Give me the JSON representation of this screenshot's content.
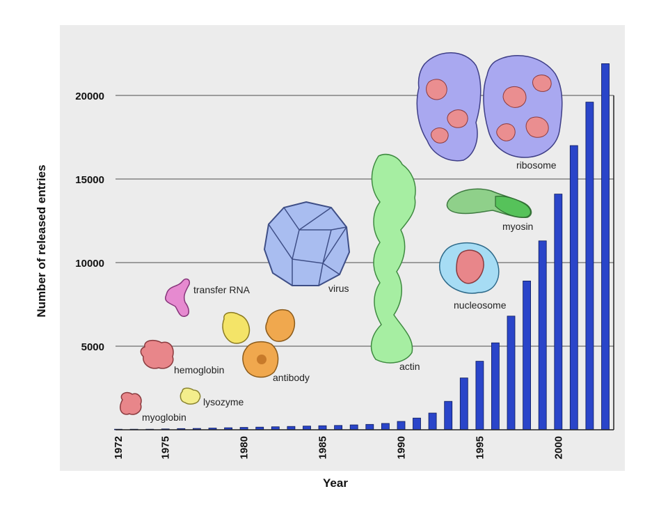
{
  "chart_data": {
    "type": "bar",
    "title": "",
    "xlabel": "Year",
    "ylabel": "Number of released entries",
    "x": [
      1972,
      1973,
      1974,
      1975,
      1976,
      1977,
      1978,
      1979,
      1980,
      1981,
      1982,
      1983,
      1984,
      1985,
      1986,
      1987,
      1988,
      1989,
      1990,
      1991,
      1992,
      1993,
      1994,
      1995,
      1996,
      1997,
      1998,
      1999,
      2000,
      2001,
      2002,
      2003
    ],
    "values": [
      10,
      20,
      30,
      50,
      70,
      80,
      100,
      120,
      140,
      160,
      180,
      200,
      220,
      240,
      260,
      290,
      320,
      380,
      500,
      700,
      1000,
      1700,
      3100,
      4100,
      5200,
      6800,
      8900,
      11300,
      14100,
      17000,
      19600,
      21900
    ],
    "x_tick_labels": [
      "1972",
      "1975",
      "1980",
      "1985",
      "1990",
      "1995",
      "2000"
    ],
    "y_tick_labels": [
      "20000",
      "15000",
      "10000",
      "5000"
    ],
    "y_ticks": [
      5000,
      10000,
      15000,
      20000
    ],
    "ylim": [
      0,
      23500
    ],
    "grid": true,
    "bar_color": "#2a45c9",
    "annotations": [
      "myoglobin",
      "lysozyme",
      "hemoglobin",
      "transfer RNA",
      "antibody",
      "virus",
      "actin",
      "nucleosome",
      "myosin",
      "ribosome"
    ]
  }
}
